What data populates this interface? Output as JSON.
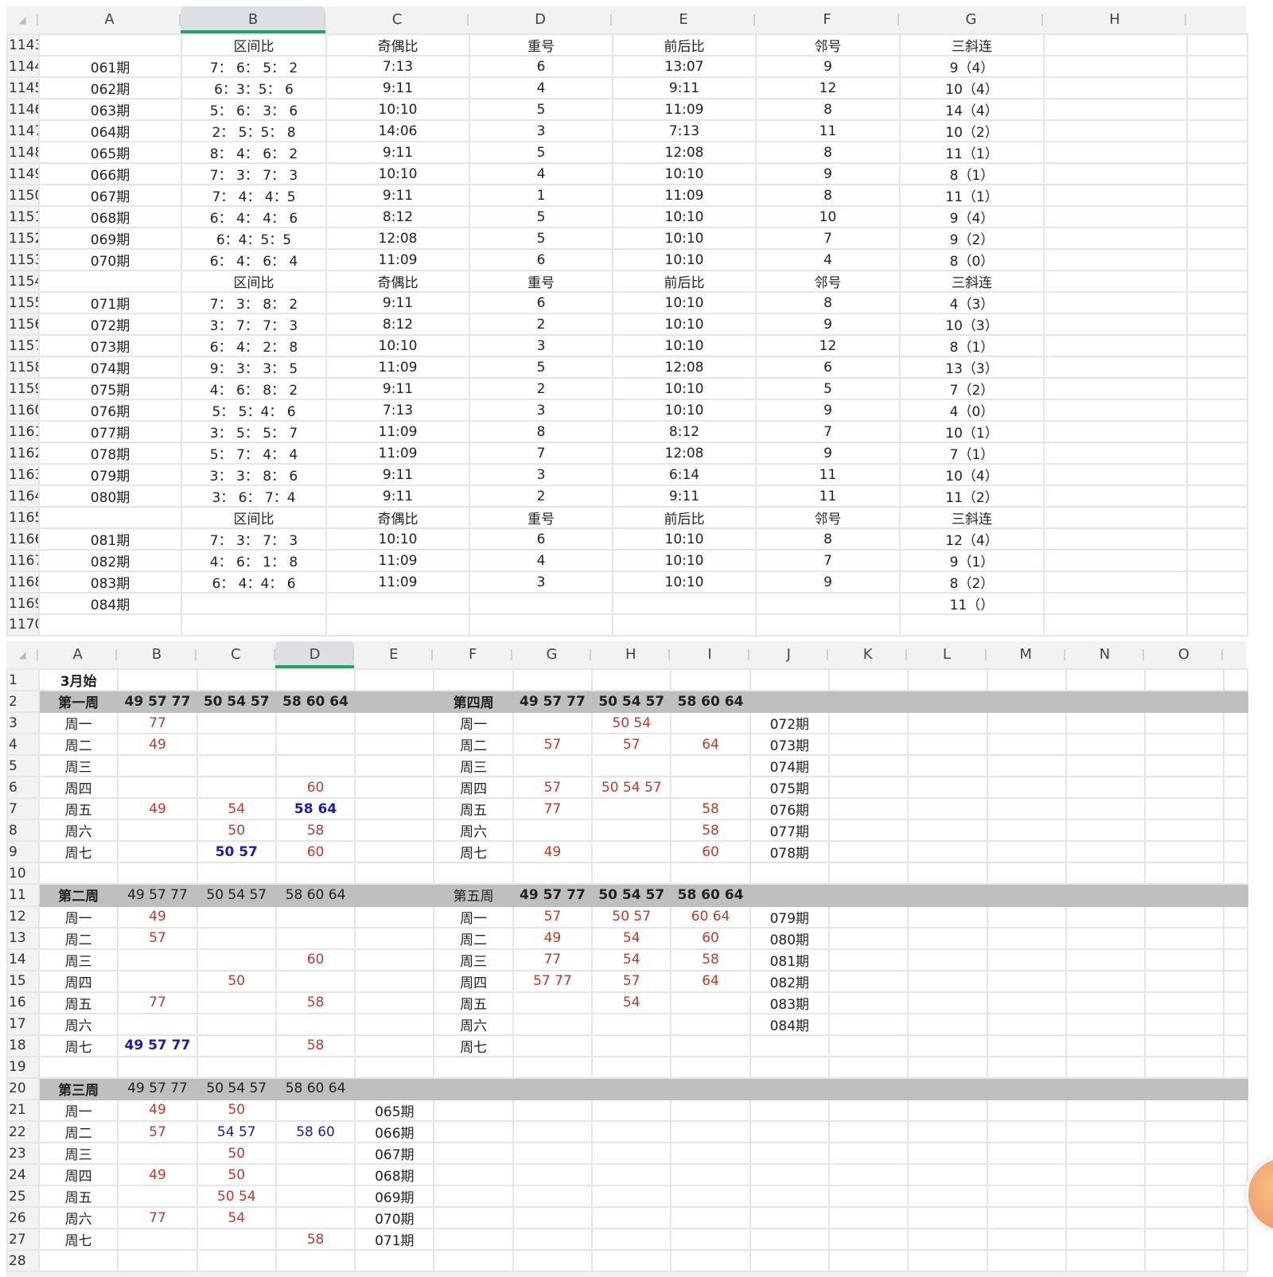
{
  "top_sheet": {
    "columns": [
      "A",
      "B",
      "C",
      "D",
      "E",
      "F",
      "G",
      "H"
    ],
    "selected_column": "B",
    "start_row": 1143,
    "rows": [
      [
        "",
        "区间比",
        "奇偶比",
        "重号",
        "前后比",
        "邻号",
        "三斜连",
        ""
      ],
      [
        "061期",
        "7： 6： 5： 2",
        "7:13",
        "6",
        "13:07",
        "9",
        "9（4）",
        ""
      ],
      [
        "062期",
        "6：3：5： 6",
        "9:11",
        "4",
        "9:11",
        "12",
        "10（4）",
        ""
      ],
      [
        "063期",
        "5： 6： 3： 6",
        "10:10",
        "5",
        "11:09",
        "8",
        "14（4）",
        ""
      ],
      [
        "064期",
        "2： 5：5： 8",
        "14:06",
        "3",
        "7:13",
        "11",
        "10（2）",
        ""
      ],
      [
        "065期",
        "8： 4： 6： 2",
        "9:11",
        "5",
        "12:08",
        "8",
        "11（1）",
        ""
      ],
      [
        "066期",
        "7： 3： 7： 3",
        "10:10",
        "4",
        "10:10",
        "9",
        "8（1）",
        ""
      ],
      [
        "067期",
        "7： 4： 4：5",
        "9:11",
        "1",
        "11:09",
        "8",
        "11（1）",
        ""
      ],
      [
        "068期",
        "6： 4： 4： 6",
        "8:12",
        "5",
        "10:10",
        "10",
        "9（4）",
        ""
      ],
      [
        "069期",
        "6：4：5：5",
        "12:08",
        "5",
        "10:10",
        "7",
        "9（2）",
        ""
      ],
      [
        "070期",
        "6： 4： 6： 4",
        "11:09",
        "6",
        "10:10",
        "4",
        "8（0）",
        ""
      ],
      [
        "",
        "区间比",
        "奇偶比",
        "重号",
        "前后比",
        "邻号",
        "三斜连",
        ""
      ],
      [
        "071期",
        "7： 3： 8： 2",
        "9:11",
        "6",
        "10:10",
        "8",
        "4（3）",
        ""
      ],
      [
        "072期",
        "3： 7： 7： 3",
        "8:12",
        "2",
        "10:10",
        "9",
        "10（3）",
        ""
      ],
      [
        "073期",
        "6： 4： 2： 8",
        "10:10",
        "3",
        "10:10",
        "12",
        "8（1）",
        ""
      ],
      [
        "074期",
        "9： 3： 3： 5",
        "11:09",
        "5",
        "12:08",
        "6",
        "13（3）",
        ""
      ],
      [
        "075期",
        "4： 6： 8： 2",
        "9:11",
        "2",
        "10:10",
        "5",
        "7（2）",
        ""
      ],
      [
        "076期",
        "5： 5：4： 6",
        "7:13",
        "3",
        "10:10",
        "9",
        "4（0）",
        ""
      ],
      [
        "077期",
        "3： 5： 5： 7",
        "11:09",
        "8",
        "8:12",
        "7",
        "10（1）",
        ""
      ],
      [
        "078期",
        "5： 7： 4： 4",
        "11:09",
        "7",
        "12:08",
        "9",
        "7（1）",
        ""
      ],
      [
        "079期",
        "3： 3： 8： 6",
        "9:11",
        "3",
        "6:14",
        "11",
        "10（4）",
        ""
      ],
      [
        "080期",
        "3： 6： 7：4",
        "9:11",
        "2",
        "9:11",
        "11",
        "11（2）",
        ""
      ],
      [
        "",
        "区间比",
        "奇偶比",
        "重号",
        "前后比",
        "邻号",
        "三斜连",
        ""
      ],
      [
        "081期",
        "7： 3： 7： 3",
        "10:10",
        "6",
        "10:10",
        "8",
        "12（4）",
        ""
      ],
      [
        "082期",
        "4： 6： 1： 8",
        "11:09",
        "4",
        "10:10",
        "7",
        "9（1）",
        ""
      ],
      [
        "083期",
        "6： 4：4： 6",
        "11:09",
        "3",
        "10:10",
        "9",
        "8（2）",
        ""
      ],
      [
        "084期",
        "",
        "",
        "",
        "",
        "",
        "11（）",
        ""
      ],
      [
        "",
        "",
        "",
        "",
        "",
        "",
        "",
        ""
      ]
    ]
  },
  "bottom_sheet": {
    "columns": [
      "A",
      "B",
      "C",
      "D",
      "E",
      "F",
      "G",
      "H",
      "I",
      "J",
      "K",
      "L",
      "M",
      "N",
      "O"
    ],
    "selected_column": "D",
    "start_row": 1,
    "gray_rows": [
      2,
      11,
      20
    ],
    "colors": {
      "red": "#c0392b",
      "blue": "#1c1ca8",
      "header_bar": "#bfbfbf",
      "selection": "#21a366"
    },
    "rows": [
      [
        {
          "t": "3月始",
          "b": 1
        }
      ],
      [
        {
          "t": "第一周",
          "b": 1
        },
        {
          "t": "49 57 77",
          "b": 1
        },
        {
          "t": "50 54 57",
          "b": 1
        },
        {
          "t": "58 60 64",
          "b": 1
        },
        "",
        {
          "t": "第四周",
          "b": 1
        },
        {
          "t": "49 57 77",
          "b": 1
        },
        {
          "t": "50 54 57",
          "b": 1
        },
        {
          "t": "58 60 64",
          "b": 1
        }
      ],
      [
        "周一",
        {
          "t": "77",
          "c": "red"
        },
        "",
        "",
        "",
        "周一",
        "",
        {
          "t": "50 54",
          "c": "red"
        },
        "",
        "072期"
      ],
      [
        "周二",
        {
          "t": "49",
          "c": "red"
        },
        "",
        "",
        "",
        "周二",
        {
          "t": "57",
          "c": "red"
        },
        {
          "t": "57",
          "c": "red"
        },
        {
          "t": "64",
          "c": "red"
        },
        "073期"
      ],
      [
        "周三",
        "",
        "",
        "",
        "",
        "周三",
        "",
        "",
        "",
        "074期"
      ],
      [
        "周四",
        "",
        "",
        {
          "t": "60",
          "c": "red"
        },
        "",
        "周四",
        {
          "t": "57",
          "c": "red"
        },
        {
          "t": "50 54 57",
          "c": "red"
        },
        "",
        "075期"
      ],
      [
        "周五",
        {
          "t": "49",
          "c": "red"
        },
        {
          "t": "54",
          "c": "red"
        },
        {
          "t": "58 64",
          "c": "blue",
          "b": 1
        },
        "",
        "周五",
        {
          "t": "77",
          "c": "red"
        },
        "",
        {
          "t": "58",
          "c": "red"
        },
        "076期"
      ],
      [
        "周六",
        "",
        {
          "t": "50",
          "c": "red"
        },
        {
          "t": "58",
          "c": "red"
        },
        "",
        "周六",
        "",
        "",
        {
          "t": "58",
          "c": "red"
        },
        "077期"
      ],
      [
        "周七",
        "",
        {
          "t": "50 57",
          "c": "blue",
          "b": 1
        },
        {
          "t": "60",
          "c": "red"
        },
        "",
        "周七",
        {
          "t": "49",
          "c": "red"
        },
        "",
        {
          "t": "60",
          "c": "red"
        },
        "078期"
      ],
      [],
      [
        {
          "t": "第二周",
          "b": 1
        },
        "49 57 77",
        "50 54 57",
        "58 60 64",
        "",
        "第五周",
        {
          "t": "49 57 77",
          "b": 1
        },
        {
          "t": "50 54 57",
          "b": 1
        },
        {
          "t": "58 60 64",
          "b": 1
        }
      ],
      [
        "周一",
        {
          "t": "49",
          "c": "red"
        },
        "",
        "",
        "",
        "周一",
        {
          "t": "57",
          "c": "red"
        },
        {
          "t": "50 57",
          "c": "red"
        },
        {
          "t": "60 64",
          "c": "red"
        },
        "079期"
      ],
      [
        "周二",
        {
          "t": "57",
          "c": "red"
        },
        "",
        "",
        "",
        "周二",
        {
          "t": "49",
          "c": "red"
        },
        {
          "t": "54",
          "c": "red"
        },
        {
          "t": "60",
          "c": "red"
        },
        "080期"
      ],
      [
        "周三",
        "",
        "",
        {
          "t": "60",
          "c": "red"
        },
        "",
        "周三",
        {
          "t": "77",
          "c": "red"
        },
        {
          "t": "54",
          "c": "red"
        },
        {
          "t": "58",
          "c": "red"
        },
        "081期"
      ],
      [
        "周四",
        "",
        {
          "t": "50",
          "c": "red"
        },
        "",
        "",
        "周四",
        {
          "t": "57 77",
          "c": "red"
        },
        {
          "t": "57",
          "c": "red"
        },
        {
          "t": "64",
          "c": "red"
        },
        "082期"
      ],
      [
        "周五",
        {
          "t": "77",
          "c": "red"
        },
        "",
        {
          "t": "58",
          "c": "red"
        },
        "",
        "周五",
        "",
        {
          "t": "54",
          "c": "red"
        },
        "",
        "083期"
      ],
      [
        "周六",
        "",
        "",
        "",
        "",
        "周六",
        "",
        "",
        "",
        "084期"
      ],
      [
        "周七",
        {
          "t": "49 57 77",
          "c": "blue",
          "b": 1
        },
        "",
        {
          "t": "58",
          "c": "red"
        },
        "",
        "周七"
      ],
      [],
      [
        {
          "t": "第三周",
          "b": 1
        },
        "49 57 77",
        "50 54 57",
        "58 60 64"
      ],
      [
        "周一",
        {
          "t": "49",
          "c": "red"
        },
        {
          "t": "50",
          "c": "red"
        },
        "",
        "065期"
      ],
      [
        "周二",
        {
          "t": "57",
          "c": "red"
        },
        {
          "t": "54 57",
          "c": "blue"
        },
        {
          "t": "58 60",
          "c": "blue"
        },
        "066期"
      ],
      [
        "周三",
        "",
        {
          "t": "50",
          "c": "red"
        },
        "",
        "067期"
      ],
      [
        "周四",
        {
          "t": "49",
          "c": "red"
        },
        {
          "t": "50",
          "c": "red"
        },
        "",
        "068期"
      ],
      [
        "周五",
        "",
        {
          "t": "50 54",
          "c": "red"
        },
        "",
        "069期"
      ],
      [
        "周六",
        {
          "t": "77",
          "c": "red"
        },
        {
          "t": "54",
          "c": "red"
        },
        "",
        "070期"
      ],
      [
        "周七",
        "",
        "",
        {
          "t": "58",
          "c": "red"
        },
        "071期"
      ],
      []
    ]
  }
}
